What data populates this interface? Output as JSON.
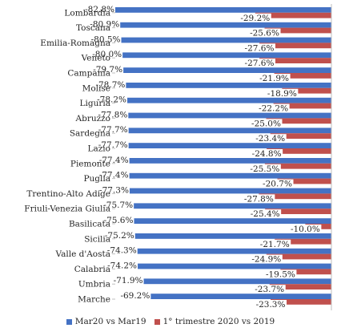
{
  "chart_data": {
    "type": "bar",
    "orientation": "horizontal",
    "categories": [
      "Lombardia",
      "Toscana",
      "Emilia-Romagna",
      "Veneto",
      "Campania",
      "Molise",
      "Liguria",
      "Abruzzo",
      "Sardegna",
      "Lazio",
      "Piemonte",
      "Puglia",
      "Trentino-Alto Adige",
      "Friuli-Venezia Giulia",
      "Basilicata",
      "Sicilia",
      "Valle d'Aosta",
      "Calabria",
      "Umbria",
      "Marche"
    ],
    "series": [
      {
        "name": "Mar20 vs Mar19",
        "color": "#4472C4",
        "values": [
          -82.8,
          -80.9,
          -80.5,
          -80.0,
          -79.7,
          -78.7,
          -78.2,
          -77.8,
          -77.7,
          -77.7,
          -77.4,
          -77.4,
          -77.3,
          -75.7,
          -75.6,
          -75.2,
          -74.3,
          -74.2,
          -71.9,
          -69.2
        ],
        "labels": [
          "-82.8%",
          "-80.9%",
          "-80.5%",
          "-80.0%",
          "-79.7%",
          "-78.7%",
          "-78.2%",
          "-77.8%",
          "-77.7%",
          "-77.7%",
          "-77.4%",
          "-77.4%",
          "-77.3%",
          "-75.7%",
          "-75.6%",
          "-75.2%",
          "-74.3%",
          "-74.2%",
          "-71.9%",
          "-69.2%"
        ]
      },
      {
        "name": "1° trimestre 2020 vs 2019",
        "color": "#C0504D",
        "values": [
          -29.2,
          -25.6,
          -27.6,
          -27.6,
          -21.9,
          -18.9,
          -22.2,
          -25.0,
          -23.4,
          -24.8,
          -25.5,
          -20.7,
          -27.8,
          -25.4,
          -10.0,
          -21.7,
          -24.9,
          -19.5,
          -23.7,
          -23.3
        ],
        "labels": [
          "-29.2%",
          "-25.6%",
          "-27.6%",
          "-27.6%",
          "-21.9%",
          "-18.9%",
          "-22.2%",
          "-25.0%",
          "-23.4%",
          "-24.8%",
          "-25.5%",
          "-20.7%",
          "-27.8%",
          "-25.4%",
          "-10.0%",
          "-21.7%",
          "-24.9%",
          "-19.5%",
          "-23.7%",
          "-23.3%"
        ]
      }
    ],
    "xlim": [
      -82.8,
      0
    ],
    "legend_position": "bottom",
    "grid": false
  }
}
